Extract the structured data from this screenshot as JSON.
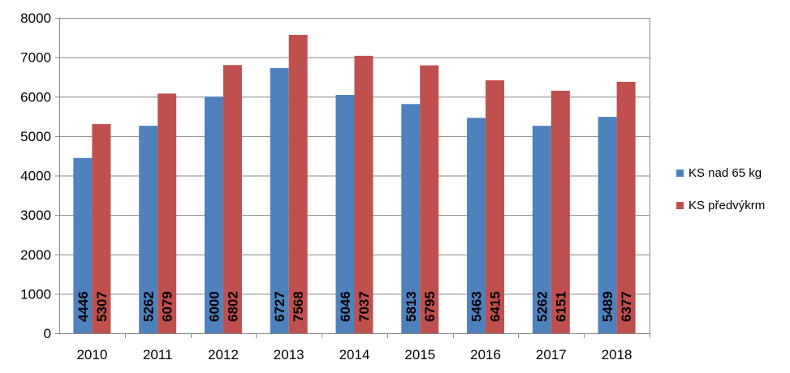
{
  "chart_data": {
    "type": "bar",
    "categories": [
      "2010",
      "2011",
      "2012",
      "2013",
      "2014",
      "2015",
      "2016",
      "2017",
      "2018"
    ],
    "series": [
      {
        "name": "KS nad 65 kg",
        "color": "#4F81BD",
        "values": [
          4446,
          5262,
          6000,
          6727,
          6046,
          5813,
          5463,
          5262,
          5489
        ]
      },
      {
        "name": "KS předvýkrm",
        "color": "#C0504D",
        "values": [
          5307,
          6079,
          6802,
          7568,
          7037,
          6795,
          6415,
          6151,
          6377
        ]
      }
    ],
    "ylim": [
      0,
      8000
    ],
    "yticks": [
      0,
      1000,
      2000,
      3000,
      4000,
      5000,
      6000,
      7000,
      8000
    ],
    "grid": true,
    "legend_position": "right",
    "data_labels": "vertical-inside-base"
  }
}
